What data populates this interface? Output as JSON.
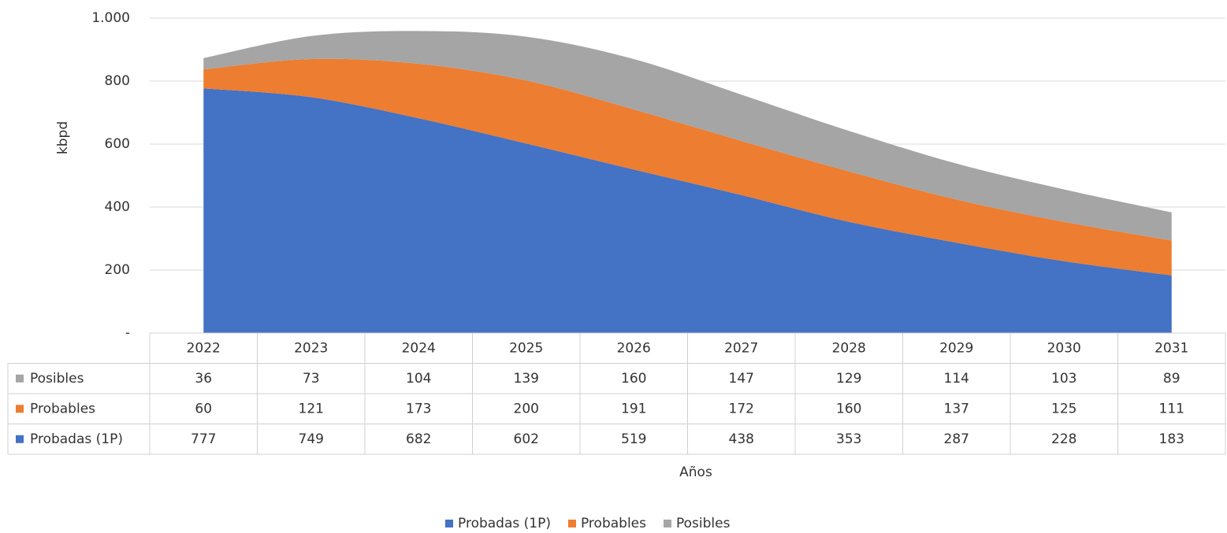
{
  "chart_data": {
    "type": "stacked_area",
    "categories": [
      "2022",
      "2023",
      "2024",
      "2025",
      "2026",
      "2027",
      "2028",
      "2029",
      "2030",
      "2031"
    ],
    "series": [
      {
        "name": "Probadas (1P)",
        "color": "#4472c4",
        "values": [
          777,
          749,
          682,
          602,
          519,
          438,
          353,
          287,
          228,
          183
        ]
      },
      {
        "name": "Probables",
        "color": "#ed7d31",
        "values": [
          60,
          121,
          173,
          200,
          191,
          172,
          160,
          137,
          125,
          111
        ]
      },
      {
        "name": "Posibles",
        "color": "#a5a5a5",
        "values": [
          36,
          73,
          104,
          139,
          160,
          147,
          129,
          114,
          103,
          89
        ]
      }
    ],
    "ylabel": "kbpd",
    "xlabel": "Años",
    "ylim": [
      0,
      1000
    ],
    "yticks": [
      {
        "value": 0,
        "label": "-"
      },
      200,
      400,
      600,
      800,
      {
        "value": 1000,
        "label": "1.000"
      }
    ],
    "grid": true,
    "legend": "bottom"
  }
}
